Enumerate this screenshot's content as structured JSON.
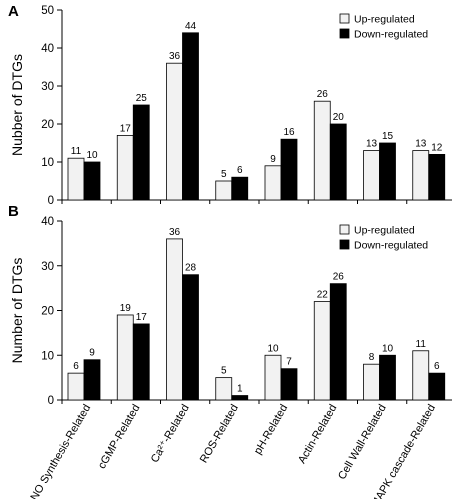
{
  "colors": {
    "up": "#f2f2f2",
    "down": "#000000",
    "axis": "#000000"
  },
  "categories": [
    "NO Synthesis-Related",
    "cGMP-Related",
    "Ca²⁺-Related",
    "ROS-Related",
    "pH-Related",
    "Actin-Related",
    "Cell Wall-Related",
    "MAPK cascade-Related"
  ],
  "chart_data": [
    {
      "type": "bar",
      "panel": "A",
      "ylabel": "Nubber of DTGs",
      "ylim": [
        0,
        50
      ],
      "yticks": [
        0,
        10,
        20,
        30,
        40,
        50
      ],
      "legend": "top-right",
      "categories": [
        "NO Synthesis-Related",
        "cGMP-Related",
        "Ca²⁺-Related",
        "ROS-Related",
        "pH-Related",
        "Actin-Related",
        "Cell Wall-Related",
        "MAPK cascade-Related"
      ],
      "series": [
        {
          "name": "Up-regulated",
          "color": "#f2f2f2",
          "values": [
            11,
            17,
            36,
            5,
            9,
            26,
            13,
            13
          ]
        },
        {
          "name": "Down-regulated",
          "color": "#000000",
          "values": [
            10,
            25,
            44,
            6,
            16,
            20,
            15,
            12
          ]
        }
      ]
    },
    {
      "type": "bar",
      "panel": "B",
      "ylabel": "Number of DTGs",
      "ylim": [
        0,
        40
      ],
      "yticks": [
        0,
        10,
        20,
        30,
        40
      ],
      "legend": "top-right",
      "categories": [
        "NO Synthesis-Related",
        "cGMP-Related",
        "Ca²⁺-Related",
        "ROS-Related",
        "pH-Related",
        "Actin-Related",
        "Cell Wall-Related",
        "MAPK cascade-Related"
      ],
      "series": [
        {
          "name": "Up-regulated",
          "color": "#f2f2f2",
          "values": [
            6,
            19,
            36,
            5,
            10,
            22,
            8,
            11
          ]
        },
        {
          "name": "Down-regulated",
          "color": "#000000",
          "values": [
            9,
            17,
            28,
            1,
            7,
            26,
            10,
            6
          ]
        }
      ]
    }
  ]
}
